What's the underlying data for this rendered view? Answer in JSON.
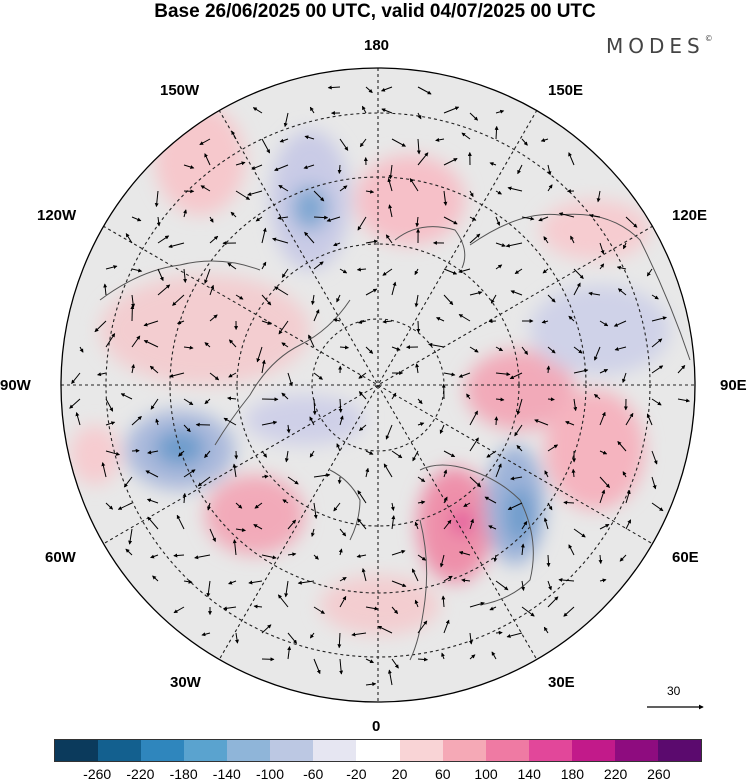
{
  "title": "Base 26/06/2025 00 UTC, valid 04/07/2025 00 UTC",
  "brand": "MODES",
  "brand_mark": "©",
  "longitude_labels": {
    "top": "180",
    "bottom": "0",
    "left": "90W",
    "right": "90E",
    "upper_left_1": "150W",
    "upper_left_2": "120W",
    "upper_right_1": "150E",
    "upper_right_2": "120E",
    "lower_left_1": "60W",
    "lower_left_2": "30W",
    "lower_right_1": "60E",
    "lower_right_2": "30E"
  },
  "reference_vector": {
    "label": "30"
  },
  "colorbar": {
    "ticks": [
      "-260",
      "-220",
      "-180",
      "-140",
      "-100",
      "-60",
      "-20",
      "20",
      "60",
      "100",
      "140",
      "180",
      "220",
      "260"
    ],
    "colors": [
      "#0b3a5c",
      "#13608f",
      "#2f86bd",
      "#5aa3cf",
      "#8fb5d9",
      "#bcc8e3",
      "#e6e6f2",
      "#ffffff",
      "#f9d4d6",
      "#f5a9b6",
      "#ef7aa3",
      "#e2479a",
      "#c21a8a",
      "#8e0c7f",
      "#5b0a6e"
    ]
  }
}
